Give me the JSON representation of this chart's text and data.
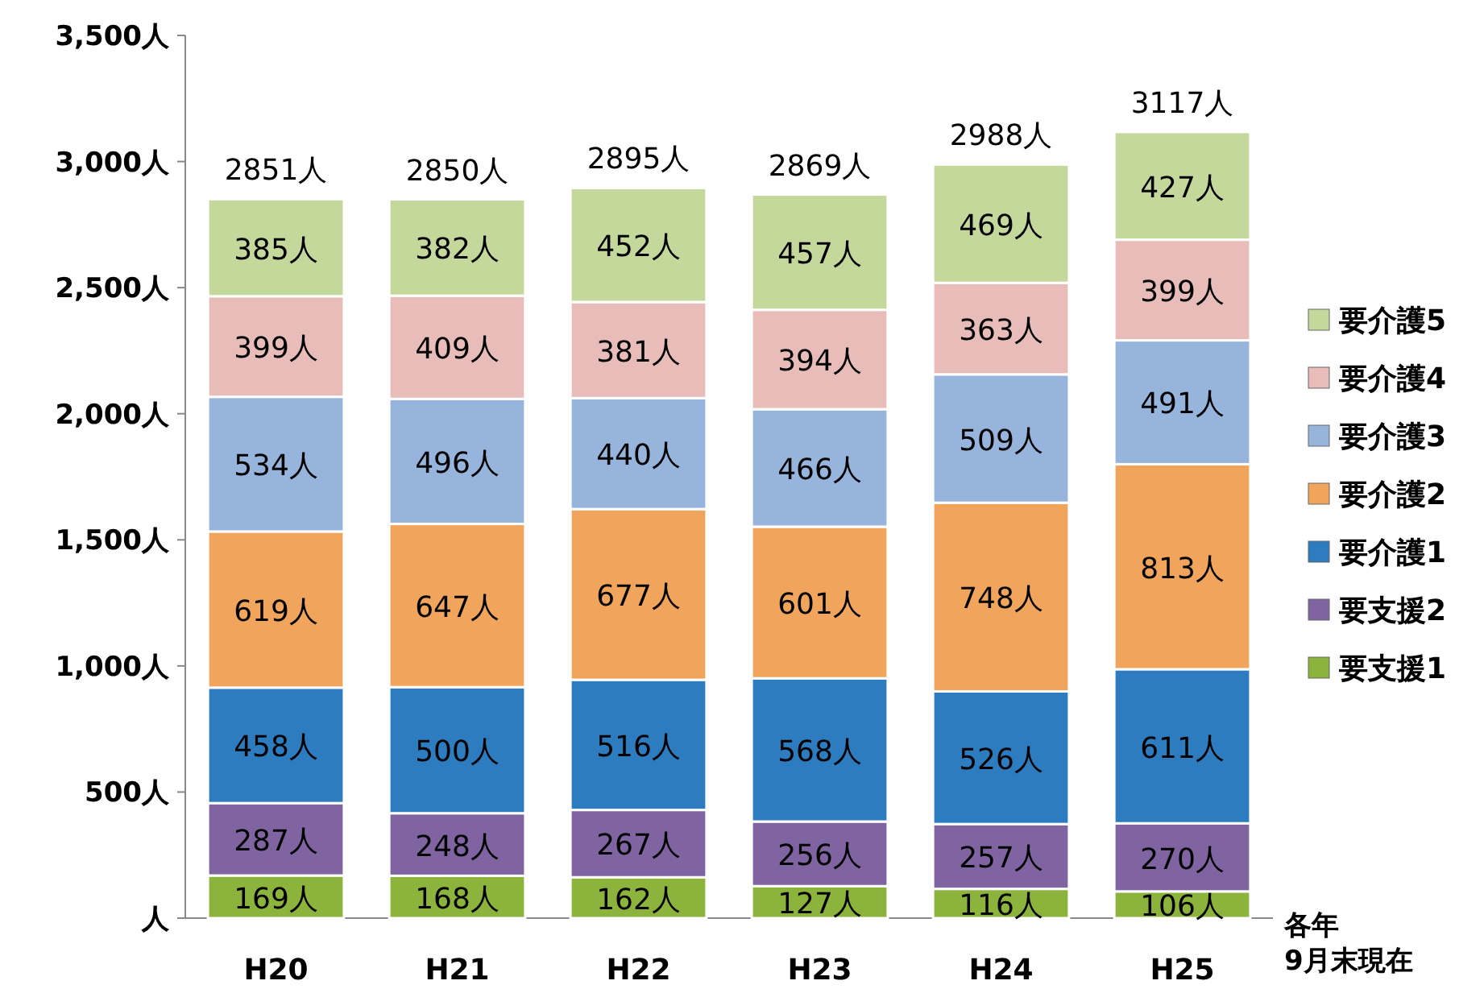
{
  "chart_data": {
    "type": "bar",
    "stacked": true,
    "categories": [
      "H20",
      "H21",
      "H22",
      "H23",
      "H24",
      "H25"
    ],
    "ylim": [
      0,
      3500
    ],
    "yticks": [
      {
        "value": 0,
        "label": "人"
      },
      {
        "value": 500,
        "label": "500人"
      },
      {
        "value": 1000,
        "label": "1,000人"
      },
      {
        "value": 1500,
        "label": "1,500人"
      },
      {
        "value": 2000,
        "label": "2,000人"
      },
      {
        "value": 2500,
        "label": "2,500人"
      },
      {
        "value": 3000,
        "label": "3,000人"
      },
      {
        "value": 3500,
        "label": "3,500人"
      }
    ],
    "series": [
      {
        "name": "要支援1",
        "color": "#8cb43c",
        "values": [
          169,
          168,
          162,
          127,
          116,
          106
        ],
        "value_labels": [
          "169人",
          "168人",
          "162人",
          "127人",
          "116人",
          "106人"
        ]
      },
      {
        "name": "要支援2",
        "color": "#8064a2",
        "values": [
          287,
          248,
          267,
          256,
          257,
          270
        ],
        "value_labels": [
          "287人",
          "248人",
          "267人",
          "256人",
          "257人",
          "270人"
        ]
      },
      {
        "name": "要介護1",
        "color": "#2e7cc0",
        "values": [
          458,
          500,
          516,
          568,
          526,
          611
        ],
        "value_labels": [
          "458人",
          "500人",
          "516人",
          "568人",
          "526人",
          "611人"
        ]
      },
      {
        "name": "要介護2",
        "color": "#f0a45c",
        "values": [
          619,
          647,
          677,
          601,
          748,
          813
        ],
        "value_labels": [
          "619人",
          "647人",
          "677人",
          "601人",
          "748人",
          "813人"
        ]
      },
      {
        "name": "要介護3",
        "color": "#96b4dc",
        "values": [
          534,
          496,
          440,
          466,
          509,
          491
        ],
        "value_labels": [
          "534人",
          "496人",
          "440人",
          "466人",
          "509人",
          "491人"
        ]
      },
      {
        "name": "要介護4",
        "color": "#e8bcb8",
        "values": [
          399,
          409,
          381,
          394,
          363,
          399
        ],
        "value_labels": [
          "399人",
          "409人",
          "381人",
          "394人",
          "363人",
          "399人"
        ]
      },
      {
        "name": "要介護5",
        "color": "#c4d89c",
        "values": [
          385,
          382,
          452,
          457,
          469,
          427
        ],
        "value_labels": [
          "385人",
          "382人",
          "452人",
          "457人",
          "469人",
          "427人"
        ]
      }
    ],
    "totals": [
      "2851人",
      "2850人",
      "2895人",
      "2869人",
      "2988人",
      "3117人"
    ],
    "legend": "right",
    "annotations": [
      "各年\n9月末現在"
    ]
  }
}
